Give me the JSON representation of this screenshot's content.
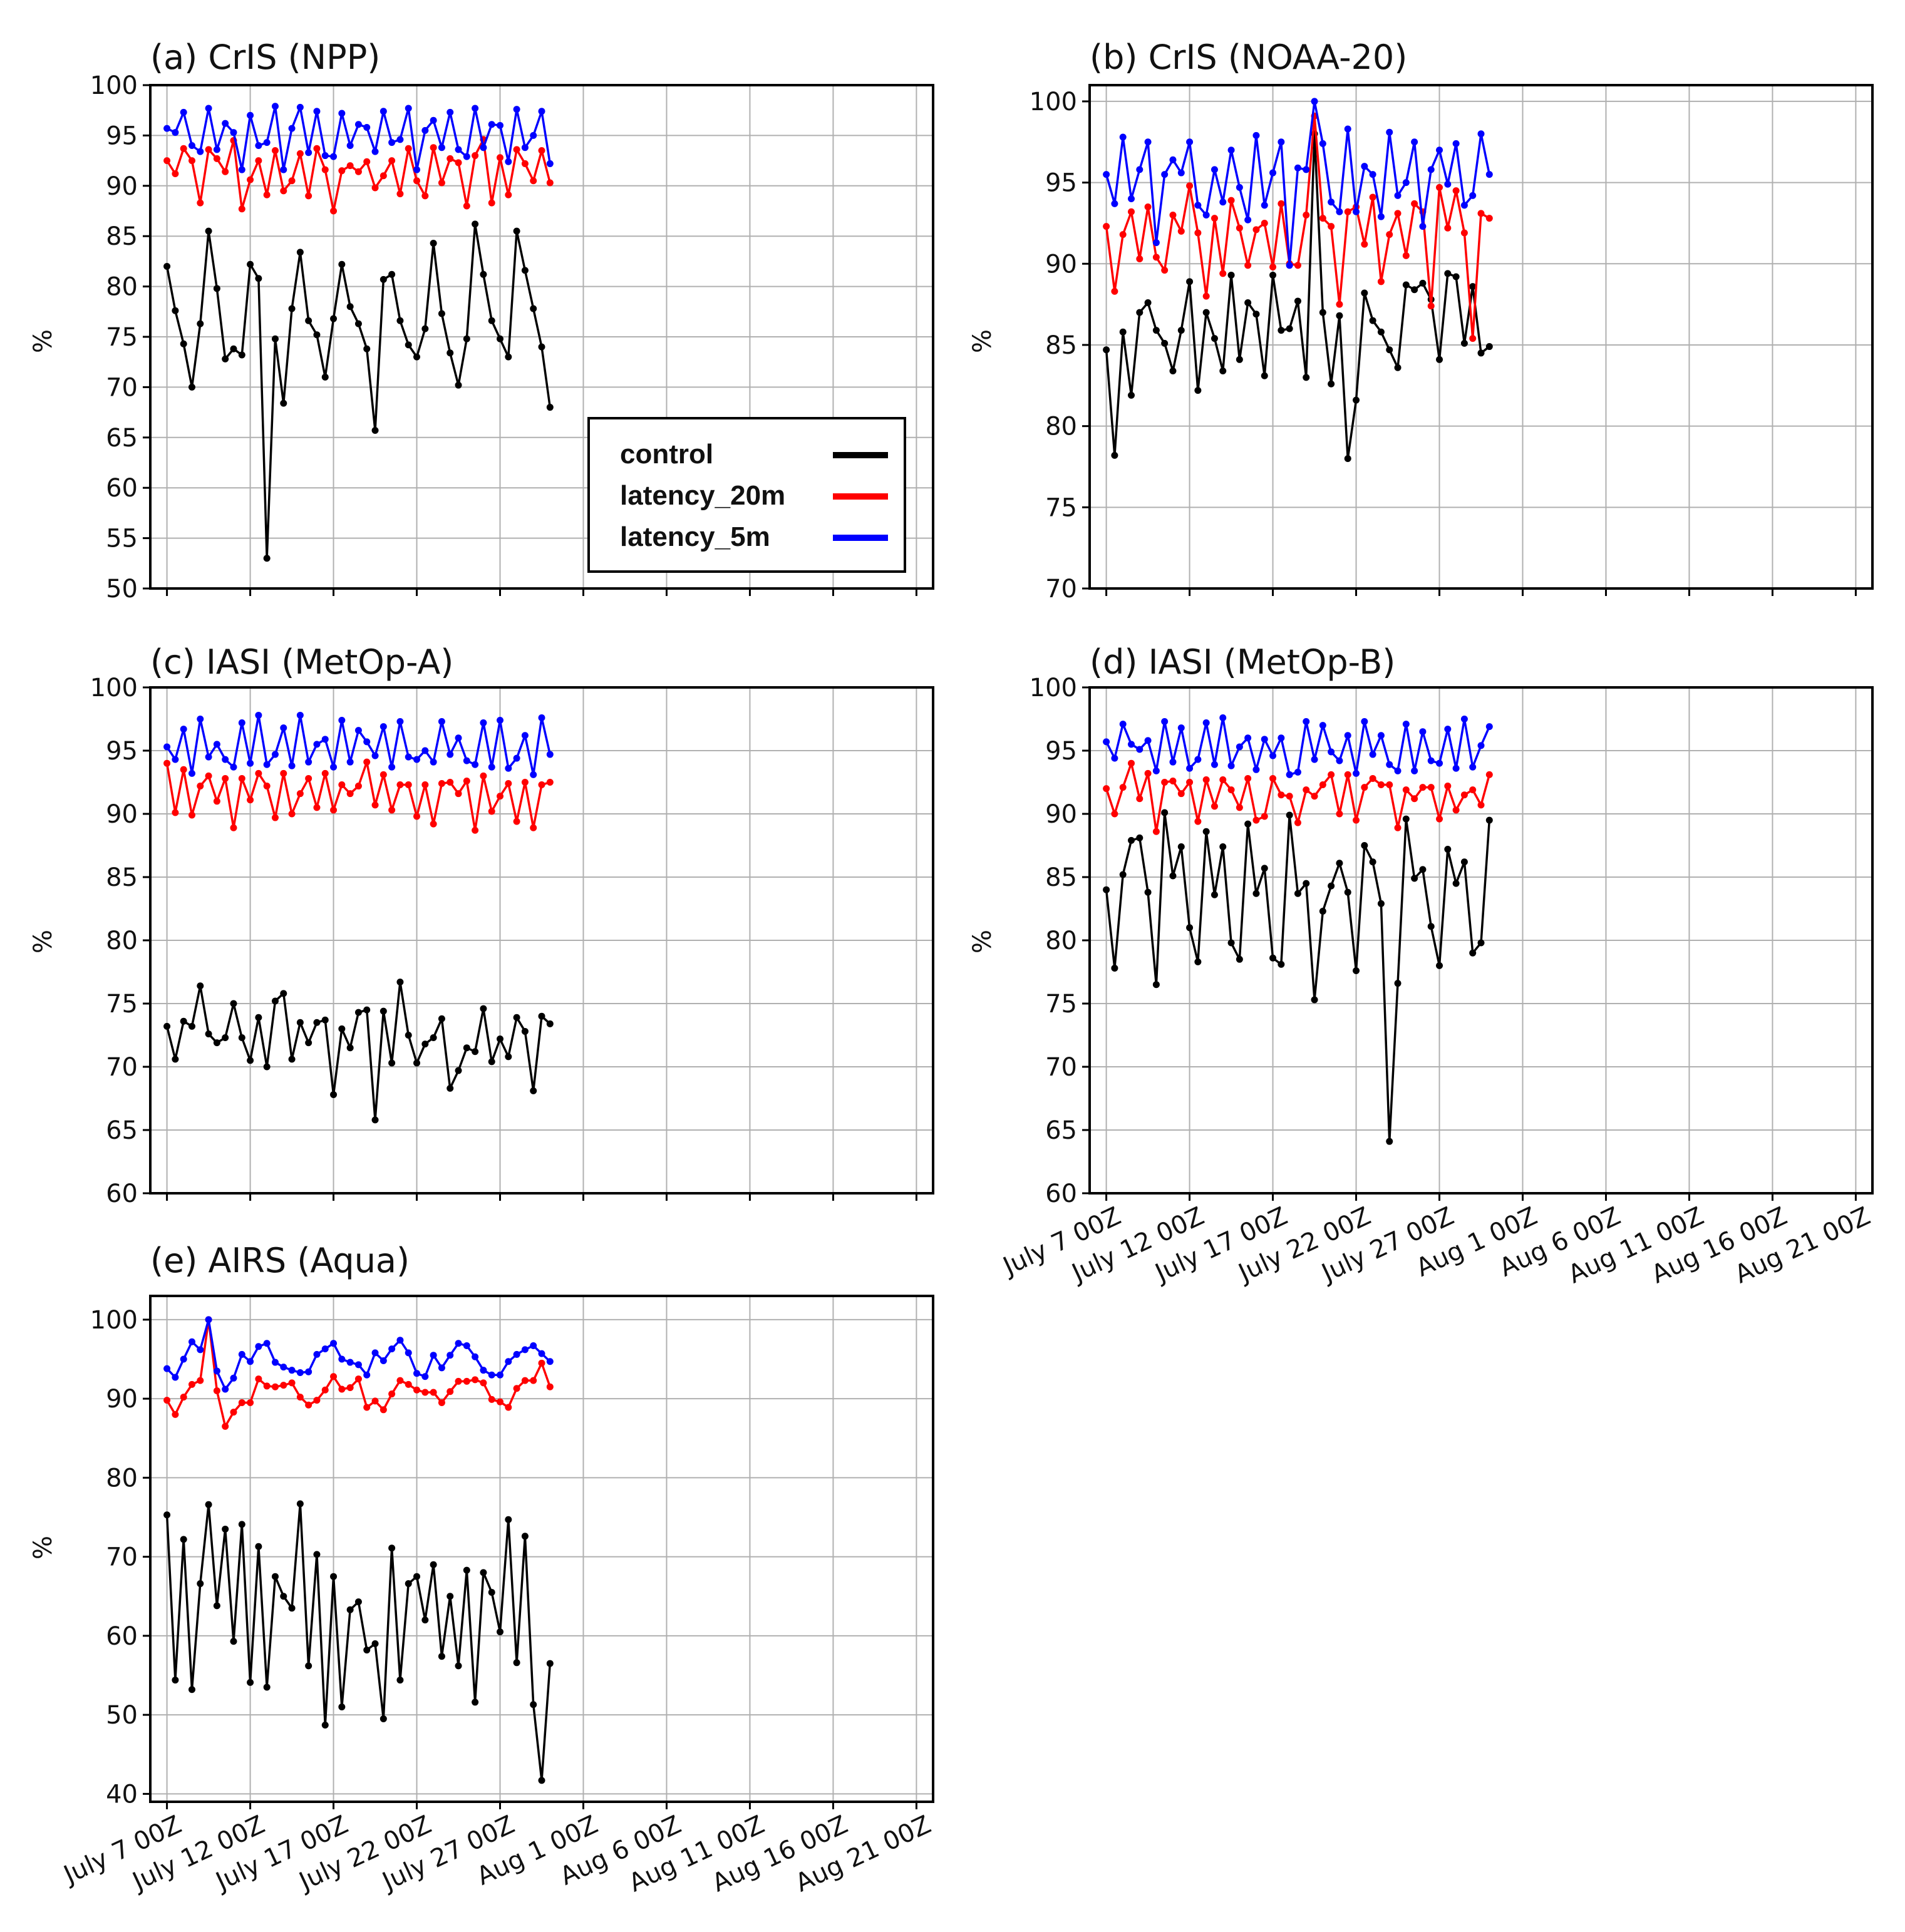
{
  "figure": {
    "xtick_labels": [
      "July 7 00Z",
      "July 12 00Z",
      "July 17 00Z",
      "July 22 00Z",
      "July 27 00Z",
      "Aug 1 00Z",
      "Aug 6 00Z",
      "Aug 11 00Z",
      "Aug 16 00Z",
      "Aug 21 00Z"
    ],
    "series_colors": {
      "control": "#000000",
      "latency_20m": "#ff0000",
      "latency_5m": "#0000ff"
    },
    "legend": [
      {
        "key": "control",
        "label": "control"
      },
      {
        "key": "latency_20m",
        "label": "latency_20m"
      },
      {
        "key": "latency_5m",
        "label": "latency_5m"
      }
    ]
  },
  "chart_data": [
    {
      "id": "a",
      "type": "line",
      "title": "(a) CrIS (NPP)",
      "xlabel": "",
      "ylabel": "%",
      "ylim": [
        50,
        100
      ],
      "yticks": [
        50,
        55,
        60,
        65,
        70,
        75,
        80,
        85,
        90,
        95,
        100
      ],
      "xlim": [
        -2,
        92
      ],
      "xticks": [
        0,
        10,
        20,
        30,
        40,
        50,
        60,
        70,
        80,
        90
      ],
      "show_xtick_labels": false,
      "legend_position": "lower-right",
      "series": [
        {
          "key": "control",
          "name": "control",
          "values": [
            82,
            77.6,
            74.3,
            70,
            76.3,
            85.5,
            79.8,
            72.8,
            73.8,
            73.2,
            82.2,
            80.8,
            53,
            74.8,
            68.4,
            77.8,
            83.4,
            76.6,
            75.2,
            71,
            76.8,
            82.2,
            78,
            76.3,
            73.8,
            65.7,
            80.7,
            81.2,
            76.6,
            74.2,
            73,
            75.8,
            84.3,
            77.3,
            73.4,
            70.2,
            74.8,
            86.2,
            81.2,
            76.6,
            74.8,
            73,
            85.5,
            81.6,
            77.8,
            74,
            68
          ]
        },
        {
          "key": "latency_20m",
          "name": "latency_20m",
          "values": [
            92.5,
            91.2,
            93.7,
            92.5,
            88.3,
            93.6,
            92.7,
            91.4,
            94.5,
            87.7,
            90.6,
            92.5,
            89.1,
            93.5,
            89.5,
            90.5,
            93.2,
            89,
            93.7,
            91.6,
            87.5,
            91.5,
            92,
            91.4,
            92.4,
            89.8,
            91,
            92.5,
            89.2,
            93.7,
            90.5,
            89,
            93.8,
            90.3,
            92.7,
            92.3,
            88,
            93,
            94.6,
            88.3,
            92.8,
            89.1,
            93.6,
            92.2,
            90.5,
            93.5,
            90.3
          ]
        },
        {
          "key": "latency_5m",
          "name": "latency_5m",
          "values": [
            95.7,
            95.3,
            97.3,
            94,
            93.4,
            97.7,
            93.6,
            96.2,
            95.3,
            91.6,
            97,
            94,
            94.3,
            97.9,
            91.6,
            95.7,
            97.8,
            93.3,
            97.4,
            93,
            92.9,
            97.2,
            94,
            96.1,
            95.8,
            93.4,
            97.4,
            94.3,
            94.6,
            97.7,
            91.6,
            95.5,
            96.5,
            93.8,
            97.3,
            93.6,
            92.9,
            97.7,
            93.8,
            96.1,
            96,
            92.4,
            97.6,
            93.8,
            95,
            97.4,
            92.2
          ]
        }
      ]
    },
    {
      "id": "b",
      "type": "line",
      "title": "(b) CrIS (NOAA-20)",
      "xlabel": "",
      "ylabel": "%",
      "ylim": [
        70,
        101
      ],
      "yticks": [
        70,
        75,
        80,
        85,
        90,
        95,
        100
      ],
      "xlim": [
        -2,
        92
      ],
      "xticks": [
        0,
        10,
        20,
        30,
        40,
        50,
        60,
        70,
        80,
        90
      ],
      "show_xtick_labels": false,
      "series": [
        {
          "key": "control",
          "name": "control",
          "values": [
            84.7,
            78.2,
            85.8,
            81.9,
            87,
            87.6,
            85.9,
            85.1,
            83.4,
            85.9,
            88.9,
            82.2,
            87,
            85.4,
            83.4,
            89.3,
            84.1,
            87.6,
            86.9,
            83.1,
            89.3,
            85.9,
            86,
            87.7,
            83,
            98,
            87,
            82.6,
            86.8,
            78,
            81.6,
            88.2,
            86.5,
            85.8,
            84.7,
            83.6,
            88.7,
            88.4,
            88.8,
            87.8,
            84.1,
            89.4,
            89.2,
            85.1,
            88.6,
            84.5,
            84.9
          ]
        },
        {
          "key": "latency_20m",
          "name": "latency_20m",
          "values": [
            92.3,
            88.3,
            91.8,
            93.2,
            90.3,
            93.5,
            90.4,
            89.6,
            93,
            92,
            94.8,
            91.9,
            88,
            92.8,
            89.4,
            93.9,
            92.2,
            89.9,
            92.1,
            92.5,
            89.8,
            93.7,
            90,
            89.9,
            93,
            99.1,
            92.8,
            92.3,
            87.5,
            93.2,
            93.5,
            91.2,
            94.1,
            88.9,
            91.8,
            93.1,
            90.5,
            93.7,
            93.2,
            87.4,
            94.7,
            92.2,
            94.5,
            91.9,
            85.4,
            93.1,
            92.8
          ]
        },
        {
          "key": "latency_5m",
          "name": "latency_5m",
          "values": [
            95.5,
            93.7,
            97.8,
            94,
            95.8,
            97.5,
            91.3,
            95.5,
            96.4,
            95.6,
            97.5,
            93.6,
            93,
            95.8,
            93.8,
            97,
            94.7,
            92.7,
            97.9,
            93.6,
            95.6,
            97.5,
            89.9,
            95.9,
            95.8,
            100,
            97.4,
            93.8,
            93.2,
            98.3,
            93.2,
            96,
            95.5,
            92.9,
            98.1,
            94.2,
            95,
            97.5,
            92.3,
            95.8,
            97,
            94.9,
            97.4,
            93.6,
            94.2,
            98,
            95.5
          ]
        }
      ]
    },
    {
      "id": "c",
      "type": "line",
      "title": "(c) IASI (MetOp-A)",
      "xlabel": "",
      "ylabel": "%",
      "ylim": [
        60,
        100
      ],
      "yticks": [
        60,
        65,
        70,
        75,
        80,
        85,
        90,
        95,
        100
      ],
      "xlim": [
        -2,
        92
      ],
      "xticks": [
        0,
        10,
        20,
        30,
        40,
        50,
        60,
        70,
        80,
        90
      ],
      "show_xtick_labels": false,
      "series": [
        {
          "key": "control",
          "name": "control",
          "values": [
            73.2,
            70.6,
            73.6,
            73.2,
            76.4,
            72.6,
            71.9,
            72.3,
            75,
            72.3,
            70.5,
            73.9,
            70,
            75.2,
            75.8,
            70.6,
            73.5,
            71.9,
            73.5,
            73.7,
            67.8,
            73,
            71.5,
            74.3,
            74.5,
            65.8,
            74.4,
            70.3,
            76.7,
            72.5,
            70.3,
            71.8,
            72.3,
            73.8,
            68.3,
            69.7,
            71.5,
            71.2,
            74.6,
            70.4,
            72.2,
            70.8,
            73.9,
            72.8,
            68.1,
            74,
            73.4
          ]
        },
        {
          "key": "latency_20m",
          "name": "latency_20m",
          "values": [
            94,
            90.1,
            93.5,
            89.9,
            92.2,
            93,
            91,
            92.8,
            88.9,
            92.8,
            91.1,
            93.2,
            92.2,
            89.7,
            93.2,
            90,
            91.6,
            92.8,
            90.5,
            93.2,
            90.3,
            92.3,
            91.6,
            92.2,
            94.1,
            90.7,
            93.1,
            90.3,
            92.3,
            92.3,
            89.8,
            92.3,
            89.2,
            92.4,
            92.5,
            91.6,
            92.6,
            88.7,
            93,
            90.2,
            91.4,
            92.4,
            89.4,
            92.5,
            88.9,
            92.3,
            92.5
          ]
        },
        {
          "key": "latency_5m",
          "name": "latency_5m",
          "values": [
            95.3,
            94.3,
            96.7,
            93.2,
            97.5,
            94.5,
            95.5,
            94.3,
            93.7,
            97.2,
            94,
            97.8,
            93.9,
            94.7,
            96.8,
            93.8,
            97.8,
            94.1,
            95.5,
            95.9,
            93.7,
            97.4,
            94.1,
            96.6,
            95.7,
            94.6,
            96.9,
            93.7,
            97.3,
            94.5,
            94.3,
            95,
            94.1,
            97.3,
            94.7,
            96,
            94.2,
            93.9,
            97.2,
            93.7,
            97.4,
            93.6,
            94.4,
            96.2,
            93.1,
            97.6,
            94.7
          ]
        }
      ]
    },
    {
      "id": "d",
      "type": "line",
      "title": "(d) IASI (MetOp-B)",
      "xlabel": "",
      "ylabel": "%",
      "ylim": [
        60,
        100
      ],
      "yticks": [
        60,
        65,
        70,
        75,
        80,
        85,
        90,
        95,
        100
      ],
      "xlim": [
        -2,
        92
      ],
      "xticks": [
        0,
        10,
        20,
        30,
        40,
        50,
        60,
        70,
        80,
        90
      ],
      "show_xtick_labels": true,
      "series": [
        {
          "key": "control",
          "name": "control",
          "values": [
            84,
            77.8,
            85.2,
            87.9,
            88.1,
            83.8,
            76.5,
            90.1,
            85.1,
            87.4,
            81,
            78.3,
            88.6,
            83.6,
            87.4,
            79.8,
            78.5,
            89.2,
            83.7,
            85.7,
            78.6,
            78.1,
            89.9,
            83.7,
            84.5,
            75.3,
            82.3,
            84.3,
            86.1,
            83.8,
            77.6,
            87.5,
            86.2,
            82.9,
            64.1,
            76.6,
            89.6,
            84.9,
            85.6,
            81.1,
            78,
            87.2,
            84.5,
            86.2,
            79,
            79.8,
            89.5
          ]
        },
        {
          "key": "latency_20m",
          "name": "latency_20m",
          "values": [
            92,
            90,
            92.1,
            94,
            91.2,
            93.2,
            88.6,
            92.5,
            92.6,
            91.6,
            92.5,
            89.4,
            92.7,
            90.6,
            92.7,
            91.9,
            90.5,
            92.8,
            89.5,
            89.8,
            92.8,
            91.5,
            91.4,
            89.3,
            91.9,
            91.4,
            92.3,
            93.1,
            90,
            93.1,
            89.5,
            92.1,
            92.8,
            92.3,
            92.3,
            88.9,
            91.9,
            91.2,
            92.1,
            92.1,
            89.6,
            92.2,
            90.3,
            91.5,
            91.9,
            90.7,
            93.1
          ]
        },
        {
          "key": "latency_5m",
          "name": "latency_5m",
          "values": [
            95.7,
            94.4,
            97.1,
            95.5,
            95.1,
            95.8,
            93.4,
            97.3,
            94.1,
            96.8,
            93.6,
            94.3,
            97.2,
            93.9,
            97.6,
            93.8,
            95.3,
            96,
            93.5,
            95.9,
            94.6,
            96,
            93.1,
            93.3,
            97.3,
            94.3,
            97,
            94.9,
            94.2,
            96.2,
            93.2,
            97.3,
            94.7,
            96.2,
            93.9,
            93.4,
            97.1,
            93.4,
            96.5,
            94.2,
            94,
            96.7,
            93.6,
            97.5,
            93.7,
            95.4,
            96.9
          ]
        }
      ]
    },
    {
      "id": "e",
      "type": "line",
      "title": "(e) AIRS (Aqua)",
      "xlabel": "",
      "ylabel": "%",
      "ylim": [
        39,
        103
      ],
      "yticks": [
        40,
        50,
        60,
        70,
        80,
        90,
        100
      ],
      "xlim": [
        -2,
        92
      ],
      "xticks": [
        0,
        10,
        20,
        30,
        40,
        50,
        60,
        70,
        80,
        90
      ],
      "show_xtick_labels": true,
      "series": [
        {
          "key": "control",
          "name": "control",
          "values": [
            75.3,
            54.4,
            72.2,
            53.2,
            66.6,
            76.6,
            63.8,
            73.5,
            59.3,
            74.1,
            54.1,
            71.3,
            53.5,
            67.5,
            65,
            63.5,
            76.7,
            56.2,
            70.3,
            48.7,
            67.5,
            51,
            63.3,
            64.3,
            58.2,
            59,
            49.5,
            71.1,
            54.4,
            66.6,
            67.5,
            62,
            69,
            57.4,
            65,
            56.2,
            68.3,
            51.6,
            68,
            65.5,
            60.5,
            74.7,
            56.6,
            72.6,
            51.3,
            41.7,
            56.5
          ]
        },
        {
          "key": "latency_20m",
          "name": "latency_20m",
          "values": [
            89.8,
            88,
            90.2,
            91.8,
            92.3,
            100,
            91,
            86.5,
            88.3,
            89.5,
            89.5,
            92.5,
            91.6,
            91.5,
            91.7,
            92,
            90.2,
            89.2,
            89.8,
            91.1,
            92.8,
            91.2,
            91.4,
            92.5,
            88.9,
            89.7,
            88.6,
            90.6,
            92.3,
            91.8,
            91.1,
            90.8,
            90.8,
            89.5,
            90.9,
            92.2,
            92.2,
            92.4,
            92,
            89.9,
            89.6,
            88.9,
            91.3,
            92.3,
            92.3,
            94.5,
            91.5
          ]
        },
        {
          "key": "latency_5m",
          "name": "latency_5m",
          "values": [
            93.8,
            92.7,
            95,
            97.2,
            96.2,
            100,
            93.5,
            91.2,
            92.6,
            95.6,
            94.7,
            96.6,
            97,
            94.6,
            94,
            93.6,
            93.3,
            93.4,
            95.6,
            96.3,
            97,
            95,
            94.6,
            94.3,
            93,
            95.8,
            94.8,
            96.3,
            97.4,
            95.8,
            93.2,
            92.8,
            95.5,
            93.9,
            95.5,
            97,
            96.7,
            95.3,
            93.6,
            93,
            93,
            94.7,
            95.6,
            96.2,
            96.7,
            95.7,
            94.7
          ]
        }
      ]
    }
  ]
}
